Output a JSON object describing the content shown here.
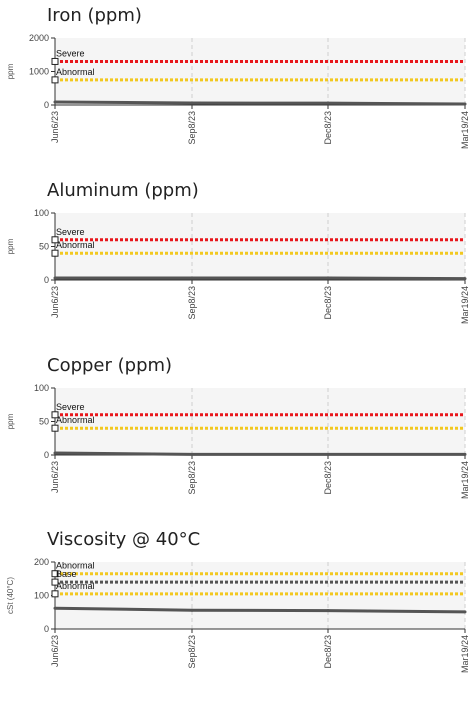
{
  "chart_data": [
    {
      "type": "line",
      "title": "Iron (ppm)",
      "ylabel": "ppm",
      "ylim": [
        0,
        2000
      ],
      "yticks": [
        0,
        1000,
        2000
      ],
      "xticks": [
        "Jun6/23",
        "Sep8/23",
        "Dec8/23",
        "Mar19/24"
      ],
      "series": [
        {
          "x": [
            "Jun6/23",
            "Sep8/23",
            "Dec8/23",
            "Mar19/24"
          ],
          "values": [
            90,
            60,
            55,
            30
          ],
          "color": "#555555"
        }
      ],
      "limits": [
        {
          "label": "Severe",
          "value": 1300,
          "color": "#e8161b"
        },
        {
          "label": "Abnormal",
          "value": 750,
          "color": "#f2c81f"
        }
      ]
    },
    {
      "type": "line",
      "title": "Aluminum (ppm)",
      "ylabel": "ppm",
      "ylim": [
        0,
        100
      ],
      "yticks": [
        0,
        50,
        100
      ],
      "xticks": [
        "Jun6/23",
        "Sep8/23",
        "Dec8/23",
        "Mar19/24"
      ],
      "series": [
        {
          "x": [
            "Jun6/23",
            "Sep8/23",
            "Dec8/23",
            "Mar19/24"
          ],
          "values": [
            3,
            3,
            3,
            2
          ],
          "color": "#555555"
        }
      ],
      "limits": [
        {
          "label": "Severe",
          "value": 60,
          "color": "#e8161b"
        },
        {
          "label": "Abnormal",
          "value": 40,
          "color": "#f2c81f"
        }
      ]
    },
    {
      "type": "line",
      "title": "Copper (ppm)",
      "ylabel": "ppm",
      "ylim": [
        0,
        100
      ],
      "yticks": [
        0,
        50,
        100
      ],
      "xticks": [
        "Jun6/23",
        "Sep8/23",
        "Dec8/23",
        "Mar19/24"
      ],
      "series": [
        {
          "x": [
            "Jun6/23",
            "Sep8/23",
            "Dec8/23",
            "Mar19/24"
          ],
          "values": [
            3,
            1,
            1,
            1
          ],
          "color": "#555555"
        }
      ],
      "limits": [
        {
          "label": "Severe",
          "value": 60,
          "color": "#e8161b"
        },
        {
          "label": "Abnormal",
          "value": 40,
          "color": "#f2c81f"
        }
      ]
    },
    {
      "type": "line",
      "title": "Viscosity @ 40°C",
      "ylabel": "cSt (40°C)",
      "ylim": [
        0,
        200
      ],
      "yticks": [
        0,
        100,
        200
      ],
      "xticks": [
        "Jun6/23",
        "Sep8/23",
        "Dec8/23",
        "Mar19/24"
      ],
      "series": [
        {
          "x": [
            "Jun6/23",
            "Sep8/23",
            "Dec8/23",
            "Mar19/24"
          ],
          "values": [
            62,
            56,
            55,
            51
          ],
          "color": "#555555"
        }
      ],
      "limits": [
        {
          "label": "Abnormal",
          "value": 165,
          "color": "#f2c81f"
        },
        {
          "label": "Base",
          "value": 140,
          "color": "#555555"
        },
        {
          "label": "Abnormal",
          "value": 105,
          "color": "#f2c81f"
        }
      ]
    }
  ]
}
